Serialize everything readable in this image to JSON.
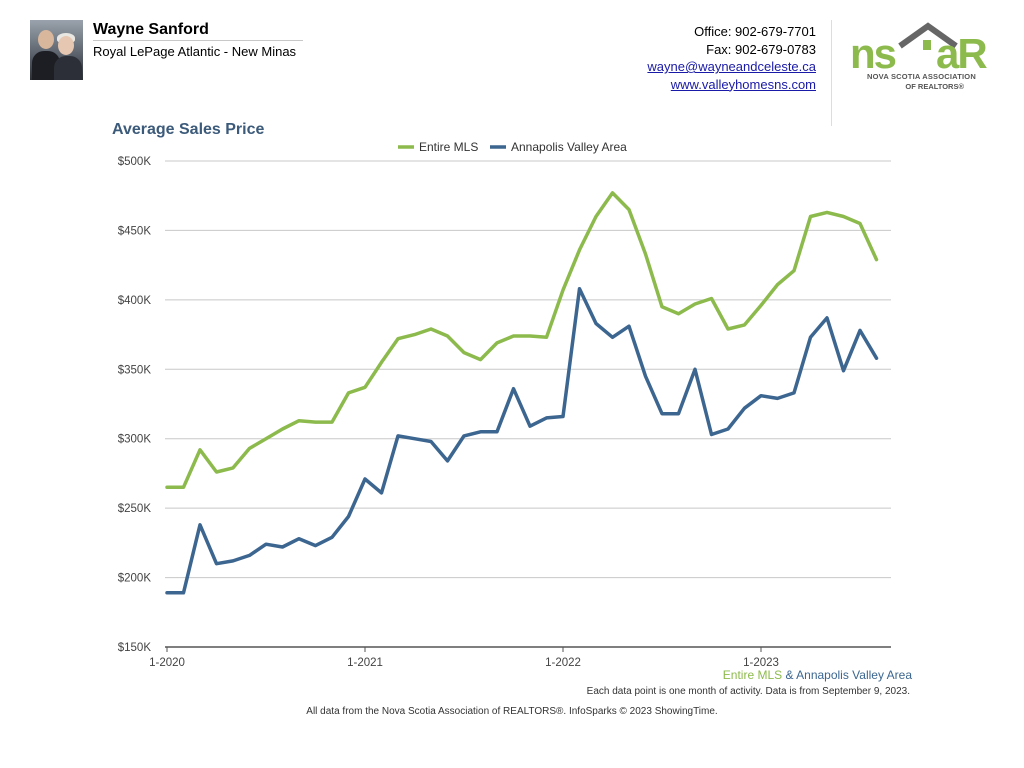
{
  "header": {
    "agent_name": "Wayne Sanford",
    "agent_company": "Royal LePage Atlantic - New Minas",
    "office": "Office: 902-679-7701",
    "fax": "Fax: 902-679-0783",
    "email": "wayne@wayneandceleste.ca",
    "website": "www.valleyhomesns.com",
    "logo_text_left": "ns",
    "logo_text_right": "aR",
    "logo_sub1": "NOVA SCOTIA ASSOCIATION",
    "logo_sub2": "OF REALTORS®"
  },
  "colors": {
    "entire_mls": "#8dba4c",
    "annapolis": "#3c6690",
    "title": "#3c5a7a",
    "grid": "#c8c8c8",
    "logo_green": "#8dba4c",
    "logo_gray": "#666666"
  },
  "footer": {
    "series_a": "Entire MLS",
    "amp": " & ",
    "series_b": "Annapolis Valley Area",
    "note": "Each data point is one month of activity. Data is from September 9, 2023.",
    "source": "All data from the Nova Scotia Association of REALTORS®. InfoSparks © 2023 ShowingTime."
  },
  "chart_data": {
    "type": "line",
    "title": "Average Sales Price",
    "ylim": [
      150000,
      500000
    ],
    "yticks": [
      150000,
      200000,
      250000,
      300000,
      350000,
      400000,
      450000,
      500000
    ],
    "ytick_labels": [
      "$150K",
      "$200K",
      "$250K",
      "$300K",
      "$350K",
      "$400K",
      "$450K",
      "$500K"
    ],
    "x_labels": [
      "1-2020",
      "1-2021",
      "1-2022",
      "1-2023"
    ],
    "x_label_indices": [
      0,
      12,
      24,
      36
    ],
    "n_months": 44,
    "grid": true,
    "legend_position": "top-center",
    "series": [
      {
        "name": "Entire MLS",
        "color": "#8dba4c",
        "values": [
          265000,
          265000,
          292000,
          276000,
          279000,
          293000,
          300000,
          307000,
          313000,
          312000,
          312000,
          333000,
          337000,
          355000,
          372000,
          375000,
          379000,
          374000,
          362000,
          357000,
          369000,
          374000,
          374000,
          373000,
          407000,
          436000,
          460000,
          477000,
          465000,
          433000,
          395000,
          390000,
          397000,
          401000,
          379000,
          382000,
          396000,
          411000,
          421000,
          460000,
          463000,
          460000,
          455000,
          429000
        ]
      },
      {
        "name": "Annapolis Valley Area",
        "color": "#3c6690",
        "values": [
          189000,
          189000,
          238000,
          210000,
          212000,
          216000,
          224000,
          222000,
          228000,
          223000,
          229000,
          244000,
          271000,
          261000,
          302000,
          300000,
          298000,
          284000,
          302000,
          305000,
          305000,
          336000,
          309000,
          315000,
          316000,
          408000,
          383000,
          373000,
          381000,
          345000,
          318000,
          318000,
          350000,
          303000,
          307000,
          322000,
          331000,
          329000,
          333000,
          373000,
          387000,
          349000,
          378000,
          358000
        ]
      }
    ]
  }
}
